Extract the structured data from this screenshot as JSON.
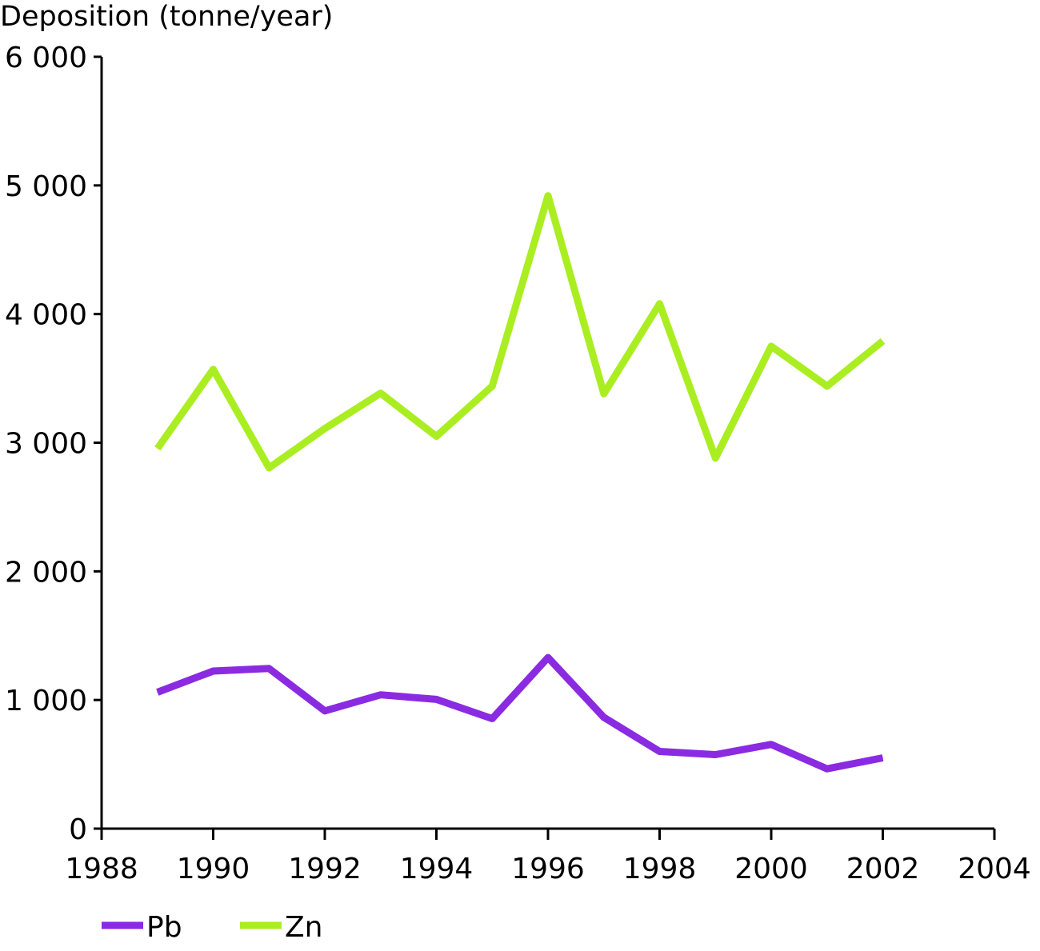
{
  "chart_data": {
    "type": "line",
    "ylabel": "Deposition (tonne/year)",
    "xlabel": "",
    "title": "",
    "xlim": [
      1988,
      2004
    ],
    "ylim": [
      0,
      6000
    ],
    "x_ticks": [
      1988,
      1990,
      1992,
      1994,
      1996,
      1998,
      2000,
      2002,
      2004
    ],
    "x_tick_labels": [
      "1988",
      "1990",
      "1992",
      "1994",
      "1996",
      "1998",
      "2000",
      "2002",
      "2004"
    ],
    "y_ticks": [
      0,
      1000,
      2000,
      3000,
      4000,
      5000,
      6000
    ],
    "y_tick_labels": [
      "0",
      "1 000",
      "2 000",
      "3 000",
      "4 000",
      "5 000",
      "6 000"
    ],
    "grid": false,
    "legend_position": "bottom-left",
    "x": [
      1989,
      1990,
      1991,
      1992,
      1993,
      1994,
      1995,
      1996,
      1997,
      1998,
      1999,
      2000,
      2001,
      2002
    ],
    "series": [
      {
        "name": "Pb",
        "color": "#8a2be2",
        "values": [
          1060,
          1225,
          1245,
          915,
          1040,
          1005,
          855,
          1330,
          865,
          600,
          575,
          655,
          465,
          550
        ]
      },
      {
        "name": "Zn",
        "color": "#aaee22",
        "values": [
          2955,
          3570,
          2805,
          3110,
          3385,
          3050,
          3440,
          4920,
          3380,
          4080,
          2880,
          3750,
          3440,
          3790
        ]
      }
    ]
  }
}
